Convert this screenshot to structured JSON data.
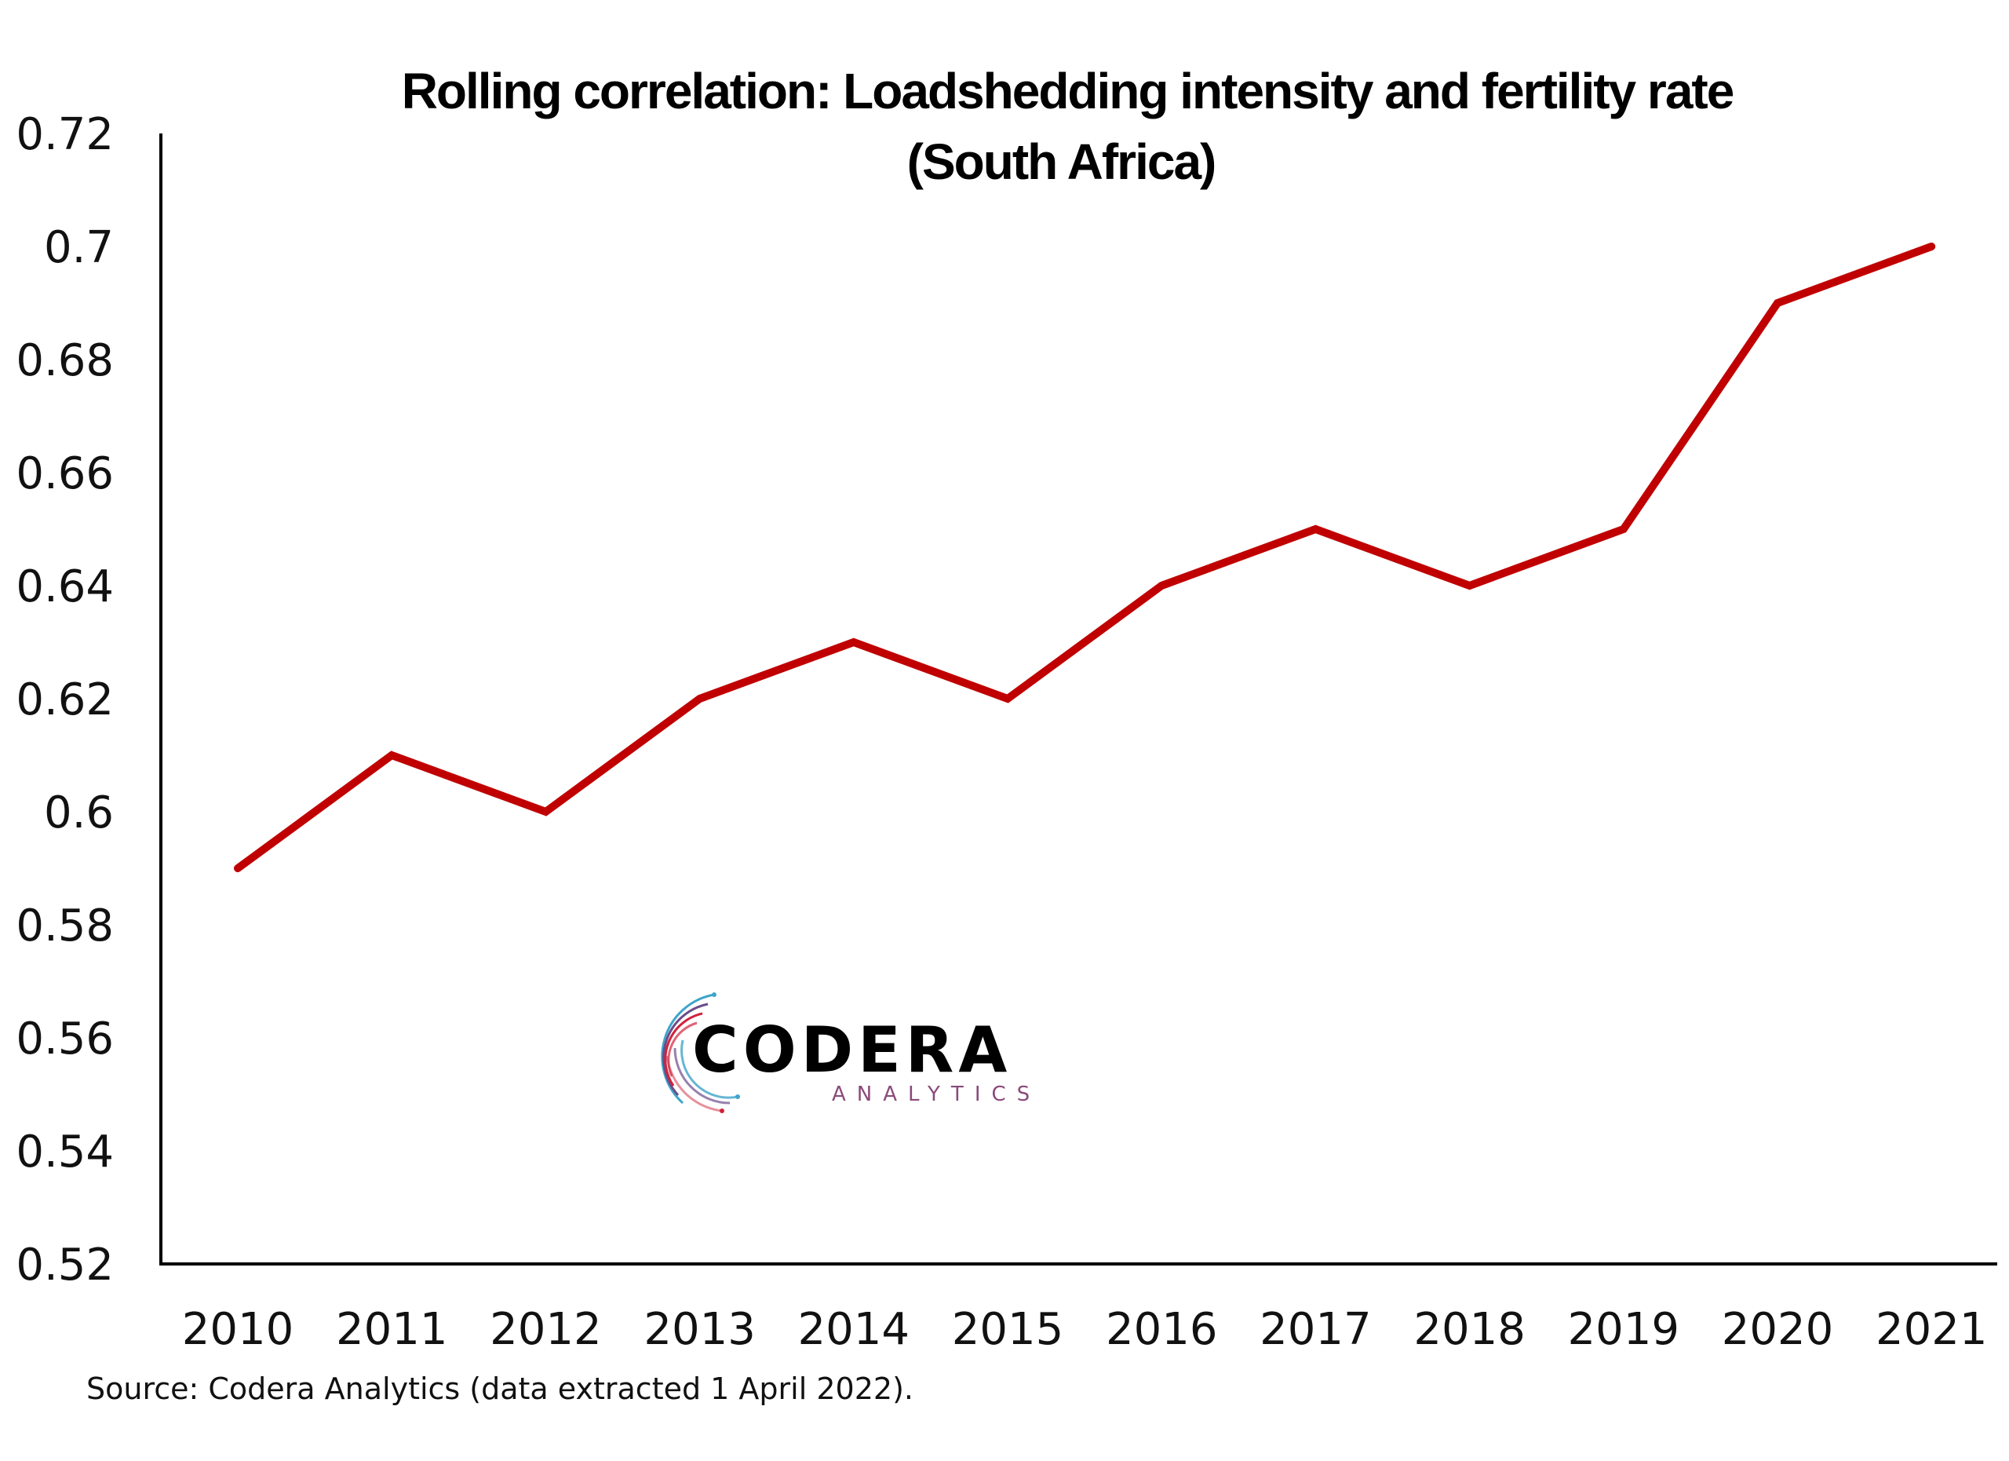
{
  "chart_data": {
    "type": "line",
    "title": "Rolling correlation: Loadshedding intensity and fertility rate",
    "subtitle": "(South Africa)",
    "xlabel": "",
    "ylabel": "",
    "x": [
      "2010",
      "2011",
      "2012",
      "2013",
      "2014",
      "2015",
      "2016",
      "2017",
      "2018",
      "2019",
      "2020",
      "2021"
    ],
    "series": [
      {
        "name": "Rolling correlation",
        "color": "#C00000",
        "values": [
          0.59,
          0.61,
          0.6,
          0.62,
          0.63,
          0.62,
          0.64,
          0.65,
          0.64,
          0.65,
          0.69,
          0.7
        ]
      }
    ],
    "ylim": [
      0.52,
      0.72
    ],
    "yticks": [
      "0.52",
      "0.54",
      "0.56",
      "0.58",
      "0.6",
      "0.62",
      "0.64",
      "0.66",
      "0.68",
      "0.7",
      "0.72"
    ],
    "ytick_values": [
      0.52,
      0.54,
      0.56,
      0.58,
      0.6,
      0.62,
      0.64,
      0.66,
      0.68,
      0.7,
      0.72
    ],
    "grid": false,
    "legend": "none",
    "source": "Source: Codera Analytics (data extracted 1 April 2022)."
  },
  "logo": {
    "name": "CODERA",
    "tagline": "ANALYTICS",
    "colors": {
      "red": "#D0233C",
      "purple": "#6B4C8A",
      "blue": "#3FA4C9"
    }
  },
  "colors": {
    "axis": "#000000",
    "line": "#C00000"
  }
}
